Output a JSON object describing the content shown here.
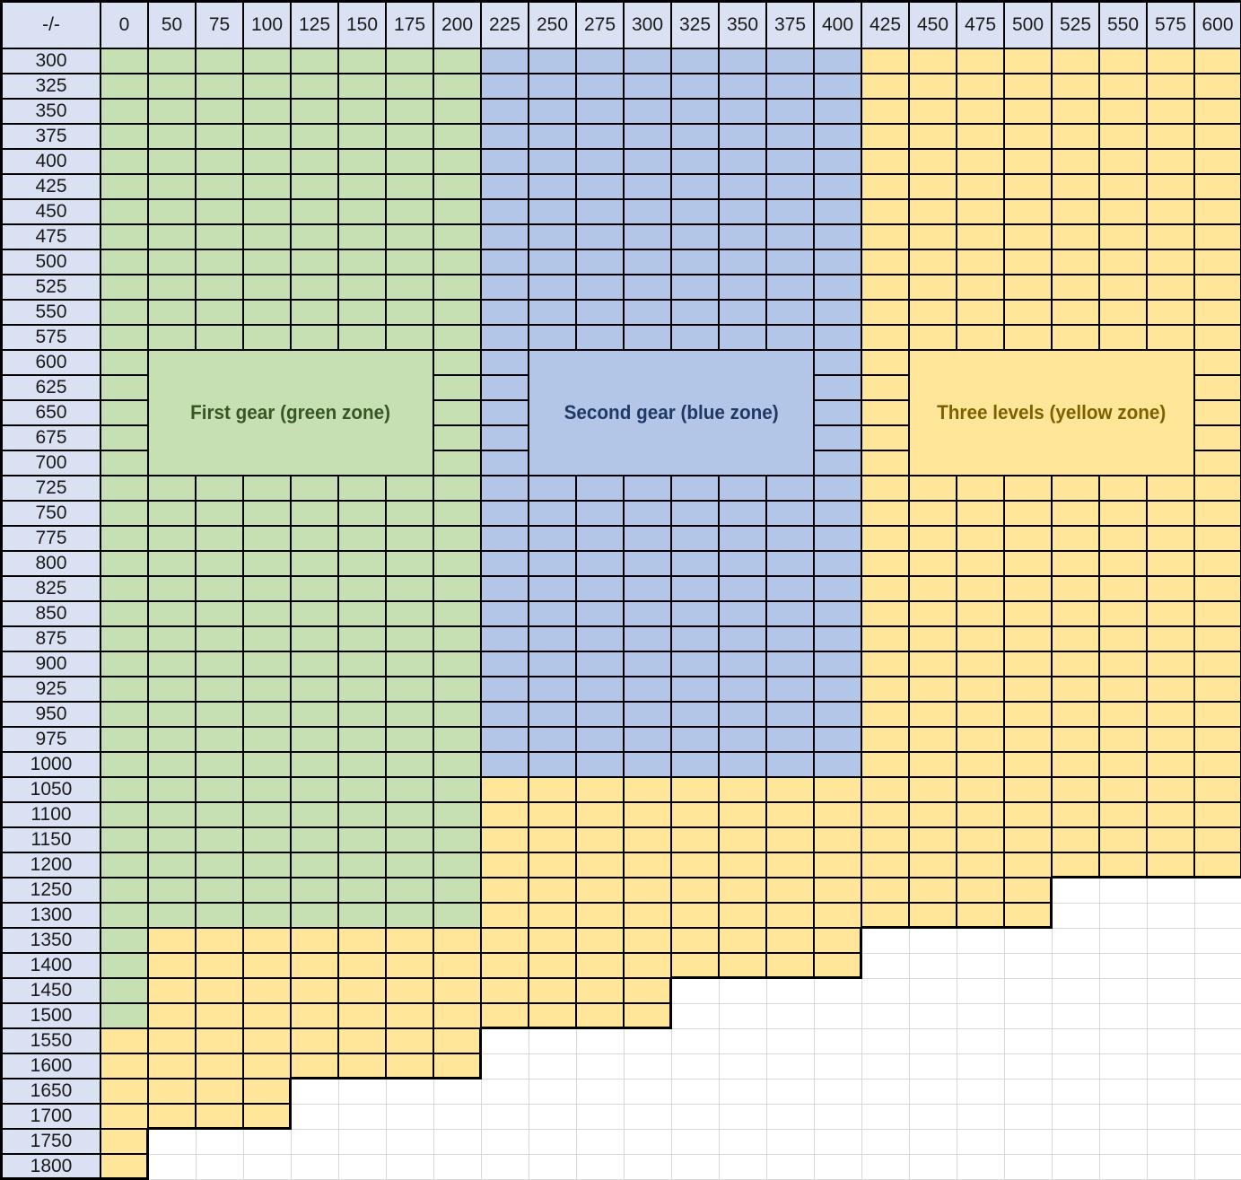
{
  "chart_data": {
    "type": "heatmap",
    "title": "",
    "corner_label": "-/-",
    "columns": [
      "0",
      "50",
      "75",
      "100",
      "125",
      "150",
      "175",
      "200",
      "225",
      "250",
      "275",
      "300",
      "325",
      "350",
      "375",
      "400",
      "425",
      "450",
      "475",
      "500",
      "525",
      "550",
      "575",
      "600"
    ],
    "rows": [
      "300",
      "325",
      "350",
      "375",
      "400",
      "425",
      "450",
      "475",
      "500",
      "525",
      "550",
      "575",
      "600",
      "625",
      "650",
      "675",
      "700",
      "725",
      "750",
      "775",
      "800",
      "825",
      "850",
      "875",
      "900",
      "925",
      "950",
      "975",
      "1000",
      "1050",
      "1100",
      "1150",
      "1200",
      "1250",
      "1300",
      "1350",
      "1400",
      "1450",
      "1500",
      "1550",
      "1600",
      "1650",
      "1700",
      "1750",
      "1800"
    ],
    "zone_colors": {
      "green": "#C6E0B4",
      "blue": "#B4C6E7",
      "yellow": "#FFE699"
    },
    "header_color": "#D9E1F2",
    "grid_line_color_filled": "#000000",
    "grid_line_color_empty": "#D9D9D9",
    "fill_patterns": {
      "A": [
        [
          0,
          7,
          "green"
        ],
        [
          8,
          15,
          "blue"
        ],
        [
          16,
          23,
          "yellow"
        ]
      ],
      "B": [
        [
          0,
          7,
          "green"
        ],
        [
          8,
          23,
          "yellow"
        ]
      ],
      "C": [
        [
          0,
          7,
          "green"
        ],
        [
          8,
          19,
          "yellow"
        ]
      ],
      "D": [
        [
          0,
          0,
          "green"
        ],
        [
          1,
          15,
          "yellow"
        ]
      ],
      "E": [
        [
          0,
          0,
          "green"
        ],
        [
          1,
          11,
          "yellow"
        ]
      ],
      "F": [
        [
          0,
          7,
          "yellow"
        ]
      ],
      "G": [
        [
          0,
          3,
          "yellow"
        ]
      ],
      "H": [
        [
          0,
          0,
          "yellow"
        ]
      ]
    },
    "row_pattern_keys": [
      "A",
      "A",
      "A",
      "A",
      "A",
      "A",
      "A",
      "A",
      "A",
      "A",
      "A",
      "A",
      "A",
      "A",
      "A",
      "A",
      "A",
      "A",
      "A",
      "A",
      "A",
      "A",
      "A",
      "A",
      "A",
      "A",
      "A",
      "A",
      "A",
      "B",
      "B",
      "B",
      "B",
      "C",
      "C",
      "D",
      "D",
      "E",
      "E",
      "F",
      "F",
      "G",
      "G",
      "H",
      "H"
    ],
    "overlays": [
      {
        "zone": "green",
        "label": "First gear (green zone)",
        "text_color": "#375623",
        "col_start": 1,
        "col_end": 6,
        "row_start": 12,
        "row_end": 16
      },
      {
        "zone": "blue",
        "label": "Second gear (blue zone)",
        "text_color": "#1F3864",
        "col_start": 9,
        "col_end": 14,
        "row_start": 12,
        "row_end": 16
      },
      {
        "zone": "yellow",
        "label": "Three levels (yellow zone)",
        "text_color": "#7F6000",
        "col_start": 17,
        "col_end": 22,
        "row_start": 12,
        "row_end": 16
      }
    ]
  }
}
